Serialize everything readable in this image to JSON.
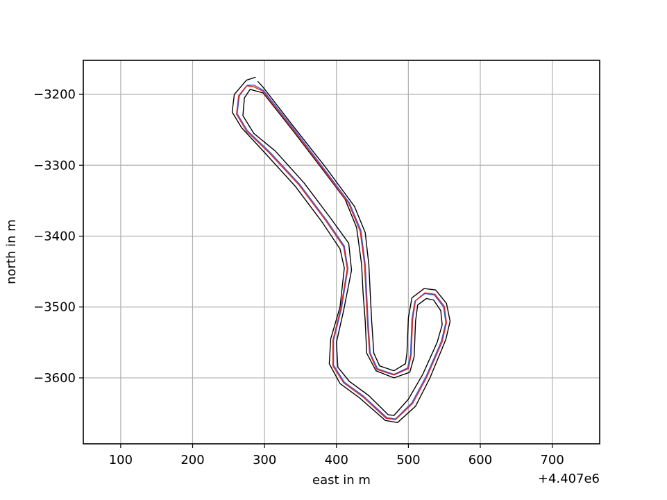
{
  "chart_data": {
    "type": "line",
    "title": "",
    "xlabel": "east in m",
    "ylabel": "north in m",
    "x_offset_label": "+4.407e6",
    "xlim": [
      48,
      766
    ],
    "ylim": [
      -3693,
      -3152
    ],
    "grid": true,
    "x_ticks": [
      100,
      200,
      300,
      400,
      500,
      600,
      700
    ],
    "x_tick_labels": [
      "100",
      "200",
      "300",
      "400",
      "500",
      "600",
      "700"
    ],
    "y_ticks": [
      -3200,
      -3300,
      -3400,
      -3500,
      -3600
    ],
    "y_tick_labels": [
      "−3200",
      "−3300",
      "−3400",
      "−3500",
      "−3600"
    ],
    "series": [
      {
        "color": "#000000",
        "points": [
          [
            291,
            -3182
          ],
          [
            298,
            -3190
          ],
          [
            340,
            -3245
          ],
          [
            385,
            -3303
          ],
          [
            425,
            -3358
          ],
          [
            440,
            -3395
          ],
          [
            445,
            -3440
          ],
          [
            447,
            -3480
          ],
          [
            449,
            -3520
          ],
          [
            452,
            -3565
          ],
          [
            460,
            -3583
          ],
          [
            480,
            -3590
          ],
          [
            496,
            -3580
          ],
          [
            498,
            -3565
          ],
          [
            500,
            -3515
          ],
          [
            505,
            -3487
          ],
          [
            522,
            -3474
          ],
          [
            538,
            -3476
          ],
          [
            553,
            -3495
          ],
          [
            558,
            -3520
          ],
          [
            552,
            -3546
          ],
          [
            530,
            -3600
          ],
          [
            510,
            -3640
          ],
          [
            485,
            -3663
          ],
          [
            468,
            -3660
          ],
          [
            432,
            -3628
          ],
          [
            405,
            -3608
          ],
          [
            390,
            -3580
          ],
          [
            392,
            -3545
          ],
          [
            405,
            -3500
          ],
          [
            411,
            -3445
          ],
          [
            405,
            -3418
          ],
          [
            380,
            -3380
          ],
          [
            343,
            -3330
          ],
          [
            300,
            -3282
          ],
          [
            268,
            -3247
          ],
          [
            255,
            -3225
          ],
          [
            258,
            -3200
          ],
          [
            275,
            -3180
          ],
          [
            287,
            -3176
          ]
        ]
      },
      {
        "color": "#000000",
        "points": [
          [
            280,
            -3193
          ],
          [
            298,
            -3198
          ],
          [
            340,
            -3252
          ],
          [
            380,
            -3305
          ],
          [
            412,
            -3348
          ],
          [
            428,
            -3388
          ],
          [
            435,
            -3440
          ],
          [
            437,
            -3480
          ],
          [
            440,
            -3520
          ],
          [
            442,
            -3565
          ],
          [
            455,
            -3590
          ],
          [
            480,
            -3600
          ],
          [
            502,
            -3592
          ],
          [
            508,
            -3570
          ],
          [
            510,
            -3520
          ],
          [
            513,
            -3497
          ],
          [
            525,
            -3488
          ],
          [
            535,
            -3490
          ],
          [
            545,
            -3505
          ],
          [
            547,
            -3525
          ],
          [
            540,
            -3550
          ],
          [
            520,
            -3595
          ],
          [
            500,
            -3630
          ],
          [
            480,
            -3653
          ],
          [
            472,
            -3652
          ],
          [
            445,
            -3625
          ],
          [
            418,
            -3605
          ],
          [
            402,
            -3585
          ],
          [
            400,
            -3550
          ],
          [
            410,
            -3505
          ],
          [
            421,
            -3448
          ],
          [
            417,
            -3410
          ],
          [
            392,
            -3375
          ],
          [
            355,
            -3325
          ],
          [
            315,
            -3280
          ],
          [
            285,
            -3255
          ],
          [
            270,
            -3230
          ],
          [
            272,
            -3205
          ],
          [
            280,
            -3193
          ]
        ]
      },
      {
        "color": "#3a55d6",
        "points": [
          [
            285,
            -3187
          ],
          [
            298,
            -3194
          ],
          [
            340,
            -3248
          ],
          [
            382,
            -3304
          ],
          [
            418,
            -3353
          ],
          [
            434,
            -3392
          ],
          [
            440,
            -3440
          ],
          [
            442,
            -3480
          ],
          [
            444,
            -3520
          ],
          [
            447,
            -3565
          ],
          [
            457,
            -3587
          ],
          [
            480,
            -3595
          ],
          [
            499,
            -3586
          ],
          [
            503,
            -3567
          ],
          [
            505,
            -3517
          ],
          [
            509,
            -3492
          ],
          [
            523,
            -3481
          ],
          [
            536,
            -3483
          ],
          [
            549,
            -3500
          ],
          [
            552,
            -3522
          ],
          [
            546,
            -3548
          ],
          [
            525,
            -3597
          ],
          [
            505,
            -3635
          ],
          [
            482,
            -3658
          ],
          [
            470,
            -3656
          ],
          [
            438,
            -3626
          ],
          [
            411,
            -3606
          ],
          [
            396,
            -3582
          ],
          [
            396,
            -3547
          ],
          [
            407,
            -3502
          ],
          [
            416,
            -3446
          ],
          [
            411,
            -3414
          ],
          [
            386,
            -3377
          ],
          [
            349,
            -3327
          ],
          [
            307,
            -3281
          ],
          [
            276,
            -3251
          ],
          [
            262,
            -3227
          ],
          [
            265,
            -3202
          ],
          [
            276,
            -3187
          ],
          [
            285,
            -3187
          ]
        ]
      },
      {
        "color": "#d62728",
        "points": [
          [
            284,
            -3189
          ],
          [
            297,
            -3195
          ],
          [
            339,
            -3249
          ],
          [
            381,
            -3305
          ],
          [
            417,
            -3354
          ],
          [
            433,
            -3393
          ],
          [
            439,
            -3440
          ],
          [
            441,
            -3480
          ],
          [
            443,
            -3520
          ],
          [
            446,
            -3565
          ],
          [
            456,
            -3588
          ],
          [
            480,
            -3596
          ],
          [
            500,
            -3587
          ],
          [
            504,
            -3567
          ],
          [
            506,
            -3517
          ],
          [
            510,
            -3491
          ],
          [
            523,
            -3480
          ],
          [
            537,
            -3482
          ],
          [
            550,
            -3499
          ],
          [
            553,
            -3522
          ],
          [
            547,
            -3549
          ],
          [
            526,
            -3598
          ],
          [
            506,
            -3636
          ],
          [
            482,
            -3659
          ],
          [
            469,
            -3657
          ],
          [
            437,
            -3627
          ],
          [
            410,
            -3607
          ],
          [
            395,
            -3583
          ],
          [
            395,
            -3547
          ],
          [
            406,
            -3502
          ],
          [
            415,
            -3446
          ],
          [
            410,
            -3415
          ],
          [
            385,
            -3378
          ],
          [
            348,
            -3328
          ],
          [
            306,
            -3282
          ],
          [
            275,
            -3252
          ],
          [
            261,
            -3228
          ],
          [
            264,
            -3202
          ],
          [
            275,
            -3188
          ],
          [
            284,
            -3189
          ]
        ]
      }
    ]
  }
}
